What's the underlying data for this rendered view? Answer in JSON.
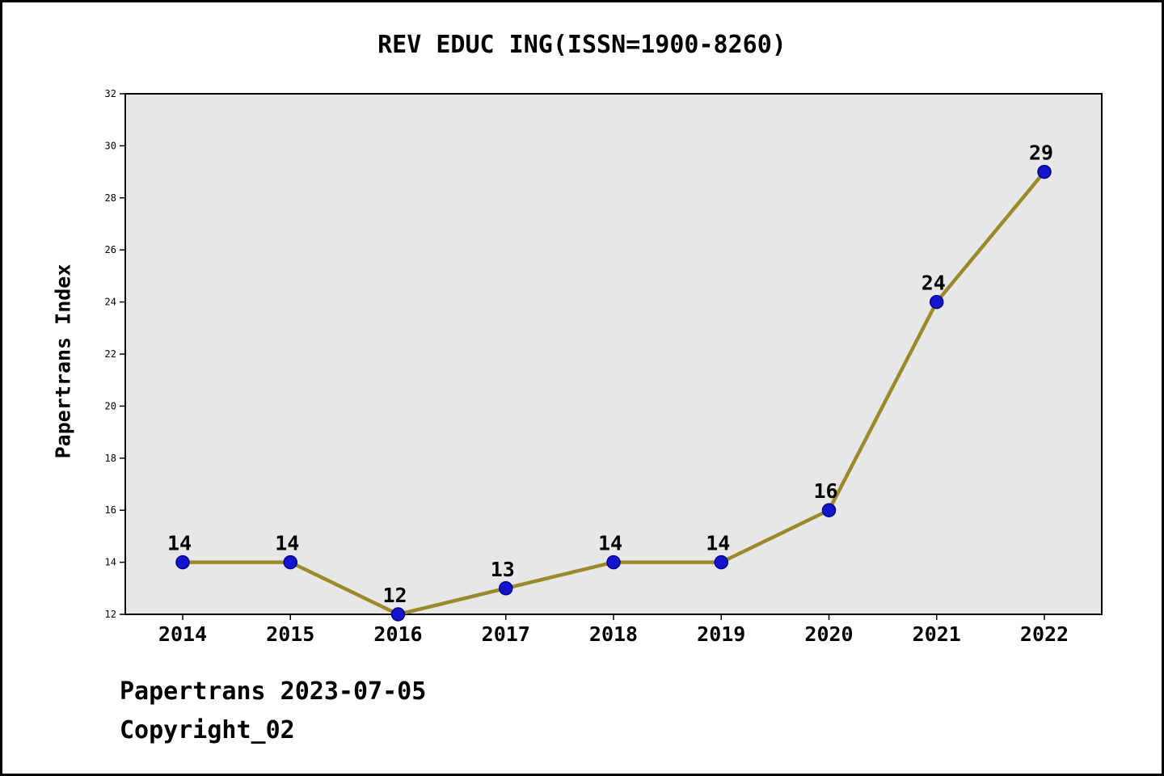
{
  "title": "REV EDUC ING(ISSN=1900-8260)",
  "footer": {
    "line1": "Papertrans 2023-07-05",
    "line2": "Copyright_02"
  },
  "colors": {
    "line": "#9a8a2c",
    "marker_fill": "#1414cc",
    "marker_edge": "#00008b",
    "plot_background": "#e7e7e7",
    "plot_border": "#000000",
    "text": "#000000"
  },
  "chart_data": {
    "type": "line",
    "title": "REV EDUC ING(ISSN=1900-8260)",
    "xlabel": "",
    "ylabel": "Papertrans Index",
    "x": [
      2014,
      2015,
      2016,
      2017,
      2018,
      2019,
      2020,
      2021,
      2022
    ],
    "series": [
      {
        "name": "Papertrans Index",
        "values": [
          14,
          14,
          12,
          13,
          14,
          14,
          16,
          24,
          29
        ]
      }
    ],
    "ylim": [
      12,
      32
    ],
    "yticks": [
      12,
      14,
      16,
      18,
      20,
      22,
      24,
      26,
      28,
      30,
      32
    ],
    "grid": false,
    "legend": false,
    "point_labels": true
  }
}
